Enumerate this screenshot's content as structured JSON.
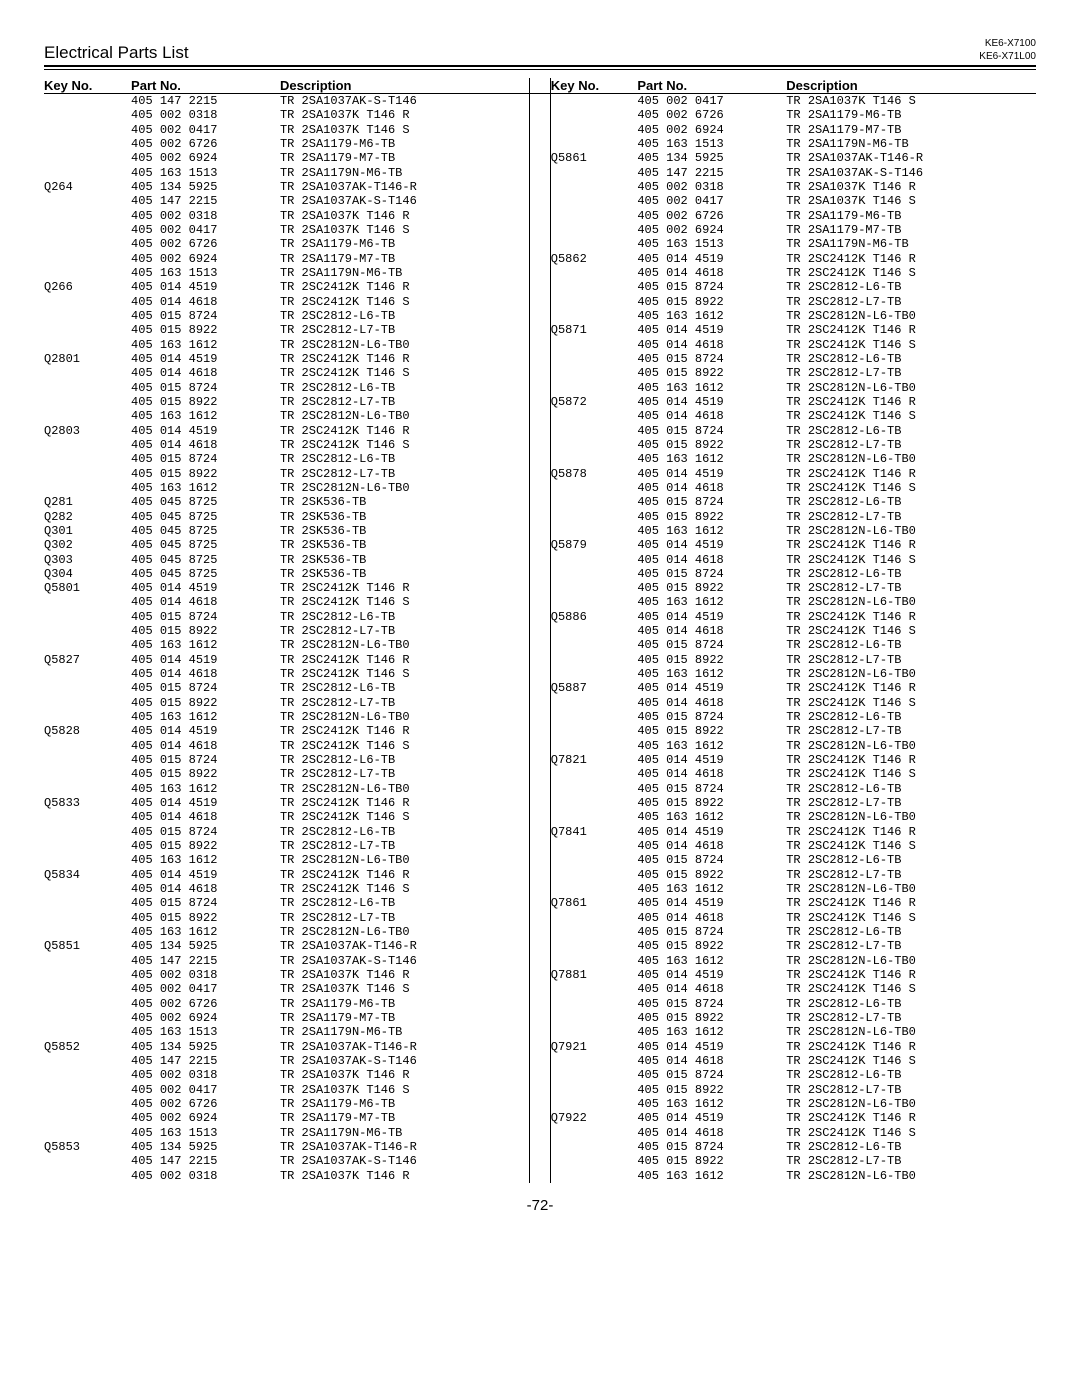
{
  "header": {
    "title": "Electrical Parts List",
    "models": [
      "KE6-X7100",
      "KE6-X71L00"
    ]
  },
  "columns": {
    "left": [
      [
        "",
        "405 147 2215",
        "TR 2SA1037AK-S-T146"
      ],
      [
        "",
        "405 002 0318",
        "TR 2SA1037K T146 R"
      ],
      [
        "",
        "405 002 0417",
        "TR 2SA1037K T146 S"
      ],
      [
        "",
        "405 002 6726",
        "TR 2SA1179-M6-TB"
      ],
      [
        "",
        "405 002 6924",
        "TR 2SA1179-M7-TB"
      ],
      [
        "",
        "405 163 1513",
        "TR 2SA1179N-M6-TB"
      ],
      [
        "Q264",
        "405 134 5925",
        "TR 2SA1037AK-T146-R"
      ],
      [
        "",
        "405 147 2215",
        "TR 2SA1037AK-S-T146"
      ],
      [
        "",
        "405 002 0318",
        "TR 2SA1037K T146 R"
      ],
      [
        "",
        "405 002 0417",
        "TR 2SA1037K T146 S"
      ],
      [
        "",
        "405 002 6726",
        "TR 2SA1179-M6-TB"
      ],
      [
        "",
        "405 002 6924",
        "TR 2SA1179-M7-TB"
      ],
      [
        "",
        "405 163 1513",
        "TR 2SA1179N-M6-TB"
      ],
      [
        "Q266",
        "405 014 4519",
        "TR 2SC2412K T146 R"
      ],
      [
        "",
        "405 014 4618",
        "TR 2SC2412K T146 S"
      ],
      [
        "",
        "405 015 8724",
        "TR 2SC2812-L6-TB"
      ],
      [
        "",
        "405 015 8922",
        "TR 2SC2812-L7-TB"
      ],
      [
        "",
        "405 163 1612",
        "TR 2SC2812N-L6-TB0"
      ],
      [
        "Q2801",
        "405 014 4519",
        "TR 2SC2412K T146 R"
      ],
      [
        "",
        "405 014 4618",
        "TR 2SC2412K T146 S"
      ],
      [
        "",
        "405 015 8724",
        "TR 2SC2812-L6-TB"
      ],
      [
        "",
        "405 015 8922",
        "TR 2SC2812-L7-TB"
      ],
      [
        "",
        "405 163 1612",
        "TR 2SC2812N-L6-TB0"
      ],
      [
        "Q2803",
        "405 014 4519",
        "TR 2SC2412K T146 R"
      ],
      [
        "",
        "405 014 4618",
        "TR 2SC2412K T146 S"
      ],
      [
        "",
        "405 015 8724",
        "TR 2SC2812-L6-TB"
      ],
      [
        "",
        "405 015 8922",
        "TR 2SC2812-L7-TB"
      ],
      [
        "",
        "405 163 1612",
        "TR 2SC2812N-L6-TB0"
      ],
      [
        "Q281",
        "405 045 8725",
        "TR 2SK536-TB"
      ],
      [
        "Q282",
        "405 045 8725",
        "TR 2SK536-TB"
      ],
      [
        "Q301",
        "405 045 8725",
        "TR 2SK536-TB"
      ],
      [
        "Q302",
        "405 045 8725",
        "TR 2SK536-TB"
      ],
      [
        "Q303",
        "405 045 8725",
        "TR 2SK536-TB"
      ],
      [
        "Q304",
        "405 045 8725",
        "TR 2SK536-TB"
      ],
      [
        "Q5801",
        "405 014 4519",
        "TR 2SC2412K T146 R"
      ],
      [
        "",
        "405 014 4618",
        "TR 2SC2412K T146 S"
      ],
      [
        "",
        "405 015 8724",
        "TR 2SC2812-L6-TB"
      ],
      [
        "",
        "405 015 8922",
        "TR 2SC2812-L7-TB"
      ],
      [
        "",
        "405 163 1612",
        "TR 2SC2812N-L6-TB0"
      ],
      [
        "Q5827",
        "405 014 4519",
        "TR 2SC2412K T146 R"
      ],
      [
        "",
        "405 014 4618",
        "TR 2SC2412K T146 S"
      ],
      [
        "",
        "405 015 8724",
        "TR 2SC2812-L6-TB"
      ],
      [
        "",
        "405 015 8922",
        "TR 2SC2812-L7-TB"
      ],
      [
        "",
        "405 163 1612",
        "TR 2SC2812N-L6-TB0"
      ],
      [
        "Q5828",
        "405 014 4519",
        "TR 2SC2412K T146 R"
      ],
      [
        "",
        "405 014 4618",
        "TR 2SC2412K T146 S"
      ],
      [
        "",
        "405 015 8724",
        "TR 2SC2812-L6-TB"
      ],
      [
        "",
        "405 015 8922",
        "TR 2SC2812-L7-TB"
      ],
      [
        "",
        "405 163 1612",
        "TR 2SC2812N-L6-TB0"
      ],
      [
        "Q5833",
        "405 014 4519",
        "TR 2SC2412K T146 R"
      ],
      [
        "",
        "405 014 4618",
        "TR 2SC2412K T146 S"
      ],
      [
        "",
        "405 015 8724",
        "TR 2SC2812-L6-TB"
      ],
      [
        "",
        "405 015 8922",
        "TR 2SC2812-L7-TB"
      ],
      [
        "",
        "405 163 1612",
        "TR 2SC2812N-L6-TB0"
      ],
      [
        "Q5834",
        "405 014 4519",
        "TR 2SC2412K T146 R"
      ],
      [
        "",
        "405 014 4618",
        "TR 2SC2412K T146 S"
      ],
      [
        "",
        "405 015 8724",
        "TR 2SC2812-L6-TB"
      ],
      [
        "",
        "405 015 8922",
        "TR 2SC2812-L7-TB"
      ],
      [
        "",
        "405 163 1612",
        "TR 2SC2812N-L6-TB0"
      ],
      [
        "Q5851",
        "405 134 5925",
        "TR 2SA1037AK-T146-R"
      ],
      [
        "",
        "405 147 2215",
        "TR 2SA1037AK-S-T146"
      ],
      [
        "",
        "405 002 0318",
        "TR 2SA1037K T146 R"
      ],
      [
        "",
        "405 002 0417",
        "TR 2SA1037K T146 S"
      ],
      [
        "",
        "405 002 6726",
        "TR 2SA1179-M6-TB"
      ],
      [
        "",
        "405 002 6924",
        "TR 2SA1179-M7-TB"
      ],
      [
        "",
        "405 163 1513",
        "TR 2SA1179N-M6-TB"
      ],
      [
        "Q5852",
        "405 134 5925",
        "TR 2SA1037AK-T146-R"
      ],
      [
        "",
        "405 147 2215",
        "TR 2SA1037AK-S-T146"
      ],
      [
        "",
        "405 002 0318",
        "TR 2SA1037K T146 R"
      ],
      [
        "",
        "405 002 0417",
        "TR 2SA1037K T146 S"
      ],
      [
        "",
        "405 002 6726",
        "TR 2SA1179-M6-TB"
      ],
      [
        "",
        "405 002 6924",
        "TR 2SA1179-M7-TB"
      ],
      [
        "",
        "405 163 1513",
        "TR 2SA1179N-M6-TB"
      ],
      [
        "Q5853",
        "405 134 5925",
        "TR 2SA1037AK-T146-R"
      ],
      [
        "",
        "405 147 2215",
        "TR 2SA1037AK-S-T146"
      ],
      [
        "",
        "405 002 0318",
        "TR 2SA1037K T146 R"
      ]
    ],
    "right": [
      [
        "",
        "405 002 0417",
        "TR 2SA1037K T146 S"
      ],
      [
        "",
        "405 002 6726",
        "TR 2SA1179-M6-TB"
      ],
      [
        "",
        "405 002 6924",
        "TR 2SA1179-M7-TB"
      ],
      [
        "",
        "405 163 1513",
        "TR 2SA1179N-M6-TB"
      ],
      [
        "Q5861",
        "405 134 5925",
        "TR 2SA1037AK-T146-R"
      ],
      [
        "",
        "405 147 2215",
        "TR 2SA1037AK-S-T146"
      ],
      [
        "",
        "405 002 0318",
        "TR 2SA1037K T146 R"
      ],
      [
        "",
        "405 002 0417",
        "TR 2SA1037K T146 S"
      ],
      [
        "",
        "405 002 6726",
        "TR 2SA1179-M6-TB"
      ],
      [
        "",
        "405 002 6924",
        "TR 2SA1179-M7-TB"
      ],
      [
        "",
        "405 163 1513",
        "TR 2SA1179N-M6-TB"
      ],
      [
        "Q5862",
        "405 014 4519",
        "TR 2SC2412K T146 R"
      ],
      [
        "",
        "405 014 4618",
        "TR 2SC2412K T146 S"
      ],
      [
        "",
        "405 015 8724",
        "TR 2SC2812-L6-TB"
      ],
      [
        "",
        "405 015 8922",
        "TR 2SC2812-L7-TB"
      ],
      [
        "",
        "405 163 1612",
        "TR 2SC2812N-L6-TB0"
      ],
      [
        "Q5871",
        "405 014 4519",
        "TR 2SC2412K T146 R"
      ],
      [
        "",
        "405 014 4618",
        "TR 2SC2412K T146 S"
      ],
      [
        "",
        "405 015 8724",
        "TR 2SC2812-L6-TB"
      ],
      [
        "",
        "405 015 8922",
        "TR 2SC2812-L7-TB"
      ],
      [
        "",
        "405 163 1612",
        "TR 2SC2812N-L6-TB0"
      ],
      [
        "Q5872",
        "405 014 4519",
        "TR 2SC2412K T146 R"
      ],
      [
        "",
        "405 014 4618",
        "TR 2SC2412K T146 S"
      ],
      [
        "",
        "405 015 8724",
        "TR 2SC2812-L6-TB"
      ],
      [
        "",
        "405 015 8922",
        "TR 2SC2812-L7-TB"
      ],
      [
        "",
        "405 163 1612",
        "TR 2SC2812N-L6-TB0"
      ],
      [
        "Q5878",
        "405 014 4519",
        "TR 2SC2412K T146 R"
      ],
      [
        "",
        "405 014 4618",
        "TR 2SC2412K T146 S"
      ],
      [
        "",
        "405 015 8724",
        "TR 2SC2812-L6-TB"
      ],
      [
        "",
        "405 015 8922",
        "TR 2SC2812-L7-TB"
      ],
      [
        "",
        "405 163 1612",
        "TR 2SC2812N-L6-TB0"
      ],
      [
        "Q5879",
        "405 014 4519",
        "TR 2SC2412K T146 R"
      ],
      [
        "",
        "405 014 4618",
        "TR 2SC2412K T146 S"
      ],
      [
        "",
        "405 015 8724",
        "TR 2SC2812-L6-TB"
      ],
      [
        "",
        "405 015 8922",
        "TR 2SC2812-L7-TB"
      ],
      [
        "",
        "405 163 1612",
        "TR 2SC2812N-L6-TB0"
      ],
      [
        "Q5886",
        "405 014 4519",
        "TR 2SC2412K T146 R"
      ],
      [
        "",
        "405 014 4618",
        "TR 2SC2412K T146 S"
      ],
      [
        "",
        "405 015 8724",
        "TR 2SC2812-L6-TB"
      ],
      [
        "",
        "405 015 8922",
        "TR 2SC2812-L7-TB"
      ],
      [
        "",
        "405 163 1612",
        "TR 2SC2812N-L6-TB0"
      ],
      [
        "Q5887",
        "405 014 4519",
        "TR 2SC2412K T146 R"
      ],
      [
        "",
        "405 014 4618",
        "TR 2SC2412K T146 S"
      ],
      [
        "",
        "405 015 8724",
        "TR 2SC2812-L6-TB"
      ],
      [
        "",
        "405 015 8922",
        "TR 2SC2812-L7-TB"
      ],
      [
        "",
        "405 163 1612",
        "TR 2SC2812N-L6-TB0"
      ],
      [
        "Q7821",
        "405 014 4519",
        "TR 2SC2412K T146 R"
      ],
      [
        "",
        "405 014 4618",
        "TR 2SC2412K T146 S"
      ],
      [
        "",
        "405 015 8724",
        "TR 2SC2812-L6-TB"
      ],
      [
        "",
        "405 015 8922",
        "TR 2SC2812-L7-TB"
      ],
      [
        "",
        "405 163 1612",
        "TR 2SC2812N-L6-TB0"
      ],
      [
        "Q7841",
        "405 014 4519",
        "TR 2SC2412K T146 R"
      ],
      [
        "",
        "405 014 4618",
        "TR 2SC2412K T146 S"
      ],
      [
        "",
        "405 015 8724",
        "TR 2SC2812-L6-TB"
      ],
      [
        "",
        "405 015 8922",
        "TR 2SC2812-L7-TB"
      ],
      [
        "",
        "405 163 1612",
        "TR 2SC2812N-L6-TB0"
      ],
      [
        "Q7861",
        "405 014 4519",
        "TR 2SC2412K T146 R"
      ],
      [
        "",
        "405 014 4618",
        "TR 2SC2412K T146 S"
      ],
      [
        "",
        "405 015 8724",
        "TR 2SC2812-L6-TB"
      ],
      [
        "",
        "405 015 8922",
        "TR 2SC2812-L7-TB"
      ],
      [
        "",
        "405 163 1612",
        "TR 2SC2812N-L6-TB0"
      ],
      [
        "Q7881",
        "405 014 4519",
        "TR 2SC2412K T146 R"
      ],
      [
        "",
        "405 014 4618",
        "TR 2SC2412K T146 S"
      ],
      [
        "",
        "405 015 8724",
        "TR 2SC2812-L6-TB"
      ],
      [
        "",
        "405 015 8922",
        "TR 2SC2812-L7-TB"
      ],
      [
        "",
        "405 163 1612",
        "TR 2SC2812N-L6-TB0"
      ],
      [
        "Q7921",
        "405 014 4519",
        "TR 2SC2412K T146 R"
      ],
      [
        "",
        "405 014 4618",
        "TR 2SC2412K T146 S"
      ],
      [
        "",
        "405 015 8724",
        "TR 2SC2812-L6-TB"
      ],
      [
        "",
        "405 015 8922",
        "TR 2SC2812-L7-TB"
      ],
      [
        "",
        "405 163 1612",
        "TR 2SC2812N-L6-TB0"
      ],
      [
        "Q7922",
        "405 014 4519",
        "TR 2SC2412K T146 R"
      ],
      [
        "",
        "405 014 4618",
        "TR 2SC2412K T146 S"
      ],
      [
        "",
        "405 015 8724",
        "TR 2SC2812-L6-TB"
      ],
      [
        "",
        "405 015 8922",
        "TR 2SC2812-L7-TB"
      ],
      [
        "",
        "405 163 1612",
        "TR 2SC2812N-L6-TB0"
      ]
    ]
  },
  "headers": {
    "keyno": "Key No.",
    "partno": "Part No.",
    "description": "Description"
  },
  "page_number": "-72-"
}
